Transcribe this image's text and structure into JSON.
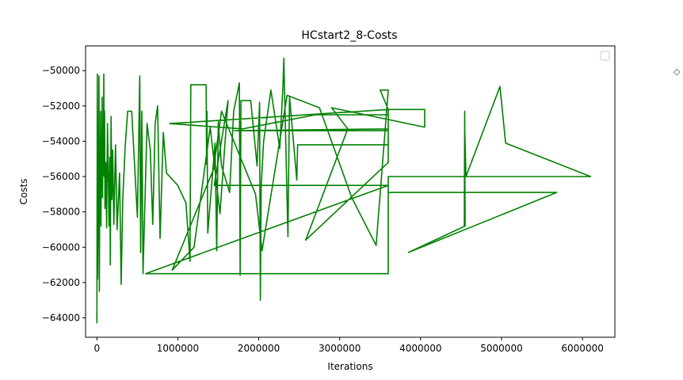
{
  "chart_data": {
    "type": "line",
    "title": "HCstart2_8-Costs",
    "xlabel": "Iterations",
    "ylabel": "Costs",
    "xlim": [
      -140000,
      6400000
    ],
    "ylim": [
      -65100,
      -48600
    ],
    "x_ticks": [
      0,
      1000000,
      2000000,
      3000000,
      4000000,
      5000000,
      6000000
    ],
    "y_ticks": [
      -64000,
      -62000,
      -60000,
      -58000,
      -56000,
      -54000,
      -52000,
      -50000
    ],
    "grid": false,
    "legend": "top-right",
    "color": "#008000",
    "series": [
      {
        "values": [
          [
            0,
            -64300
          ],
          [
            5000,
            -50200
          ],
          [
            10000,
            -61800
          ],
          [
            15000,
            -58500
          ],
          [
            20000,
            -56000
          ],
          [
            25000,
            -50300
          ],
          [
            30000,
            -62500
          ],
          [
            35000,
            -55500
          ],
          [
            40000,
            -57500
          ],
          [
            45000,
            -52300
          ],
          [
            50000,
            -58800
          ],
          [
            55000,
            -54700
          ],
          [
            60000,
            -56700
          ],
          [
            65000,
            -51500
          ],
          [
            70000,
            -57200
          ],
          [
            75000,
            -53800
          ],
          [
            80000,
            -55900
          ],
          [
            85000,
            -50200
          ],
          [
            90000,
            -56000
          ],
          [
            95000,
            -52300
          ],
          [
            100000,
            -57800
          ],
          [
            110000,
            -55200
          ],
          [
            120000,
            -58900
          ],
          [
            130000,
            -53000
          ],
          [
            140000,
            -55600
          ],
          [
            150000,
            -58800
          ],
          [
            160000,
            -54900
          ],
          [
            165000,
            -61000
          ],
          [
            175000,
            -52600
          ],
          [
            185000,
            -57300
          ],
          [
            195000,
            -54500
          ],
          [
            210000,
            -58700
          ],
          [
            230000,
            -54200
          ],
          [
            250000,
            -59000
          ],
          [
            280000,
            -55800
          ],
          [
            300000,
            -62100
          ],
          [
            320000,
            -57200
          ],
          [
            350000,
            -54300
          ],
          [
            380000,
            -52300
          ],
          [
            430000,
            -52300
          ],
          [
            500000,
            -58300
          ],
          [
            530000,
            -50300
          ],
          [
            540000,
            -60300
          ],
          [
            555000,
            -52300
          ],
          [
            570000,
            -61500
          ],
          [
            620000,
            -53000
          ],
          [
            660000,
            -54500
          ],
          [
            690000,
            -58700
          ],
          [
            720000,
            -53000
          ],
          [
            750000,
            -52000
          ],
          [
            780000,
            -59500
          ],
          [
            820000,
            -53500
          ],
          [
            860000,
            -55800
          ],
          [
            1000000,
            -56500
          ],
          [
            1100000,
            -57500
          ],
          [
            1150000,
            -60800
          ],
          [
            1160000,
            -50800
          ],
          [
            1350000,
            -50800
          ],
          [
            1355000,
            -55300
          ],
          [
            1360000,
            -52300
          ],
          [
            1370000,
            -59200
          ],
          [
            1460000,
            -54100
          ],
          [
            1480000,
            -60200
          ],
          [
            1500000,
            -52900
          ],
          [
            1540000,
            -55400
          ],
          [
            1640000,
            -56900
          ],
          [
            1690000,
            -52300
          ],
          [
            1760000,
            -50700
          ],
          [
            1770000,
            -61600
          ],
          [
            1780000,
            -51700
          ],
          [
            1900000,
            -51700
          ],
          [
            1980000,
            -55400
          ],
          [
            2010000,
            -51800
          ],
          [
            2020000,
            -63000
          ],
          [
            2030000,
            -56600
          ],
          [
            2060000,
            -54000
          ],
          [
            2150000,
            -51100
          ],
          [
            2260000,
            -54400
          ],
          [
            2300000,
            -50800
          ],
          [
            2310000,
            -49300
          ],
          [
            2360000,
            -59400
          ],
          [
            2380000,
            -51500
          ],
          [
            2470000,
            -56200
          ],
          [
            2480000,
            -54200
          ],
          [
            3600000,
            -54200
          ],
          [
            3600000,
            -53400
          ],
          [
            2300000,
            -53400
          ],
          [
            1700000,
            -53400
          ],
          [
            3600000,
            -53300
          ],
          [
            3600000,
            -52500
          ],
          [
            2700000,
            -52500
          ],
          [
            1800000,
            -53300
          ],
          [
            900000,
            -53000
          ],
          [
            3600000,
            -52200
          ],
          [
            4050000,
            -52200
          ],
          [
            4050000,
            -53200
          ],
          [
            2900000,
            -52100
          ],
          [
            3100000,
            -53300
          ],
          [
            2580000,
            -59600
          ],
          [
            3600000,
            -55200
          ],
          [
            3600000,
            -52200
          ],
          [
            3500000,
            -51100
          ],
          [
            3600000,
            -51100
          ],
          [
            3450000,
            -59900
          ],
          [
            3150000,
            -57200
          ],
          [
            2750000,
            -52100
          ],
          [
            2350000,
            -51400
          ],
          [
            2040000,
            -60200
          ],
          [
            1960000,
            -57000
          ],
          [
            1540000,
            -52300
          ],
          [
            1440000,
            -55600
          ],
          [
            930000,
            -61300
          ],
          [
            1200000,
            -60000
          ],
          [
            1400000,
            -53200
          ],
          [
            1520000,
            -58100
          ],
          [
            1620000,
            -51700
          ],
          [
            1450000,
            -56500
          ],
          [
            3600000,
            -56500
          ],
          [
            600000,
            -61500
          ],
          [
            3600000,
            -61500
          ],
          [
            3600000,
            -56000
          ],
          [
            6100000,
            -56000
          ],
          [
            5050000,
            -54100
          ],
          [
            4980000,
            -50900
          ],
          [
            4560000,
            -56000
          ],
          [
            4545000,
            -53300
          ],
          [
            4540000,
            -58800
          ],
          [
            4545000,
            -52300
          ],
          [
            4550000,
            -58800
          ],
          [
            3850000,
            -60300
          ],
          [
            5680000,
            -56900
          ],
          [
            3600000,
            -56900
          ]
        ]
      }
    ]
  }
}
